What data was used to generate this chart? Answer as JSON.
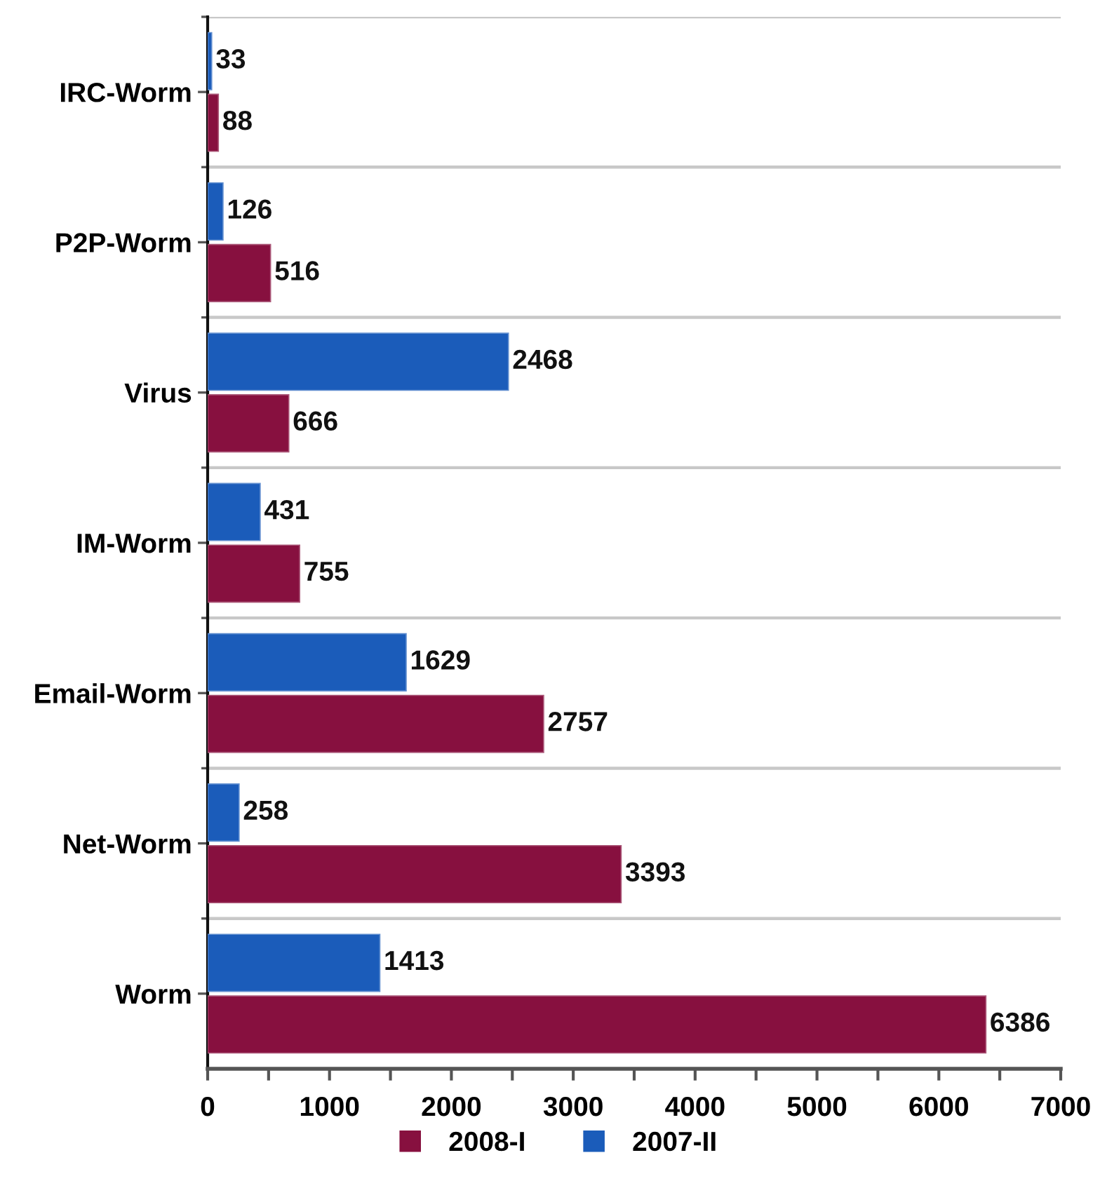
{
  "chart_data": {
    "type": "bar",
    "orientation": "horizontal",
    "categories": [
      "IRC-Worm",
      "P2P-Worm",
      "Virus",
      "IM-Worm",
      "Email-Worm",
      "Net-Worm",
      "Worm"
    ],
    "series": [
      {
        "name": "2008-I",
        "color": "#87103f",
        "values": [
          88,
          516,
          666,
          755,
          2757,
          3393,
          6386
        ]
      },
      {
        "name": "2007-II",
        "color": "#1b5cba",
        "values": [
          33,
          126,
          2468,
          431,
          1629,
          258,
          1413
        ]
      }
    ],
    "xlim": [
      0,
      7000
    ],
    "xticks": [
      0,
      {
        "value": 500,
        "label": null
      },
      1000,
      {
        "value": 1500,
        "label": null
      },
      2000,
      {
        "value": 2500,
        "label": null
      },
      3000,
      {
        "value": 3500,
        "label": null
      },
      4000,
      {
        "value": 4500,
        "label": null
      },
      5000,
      {
        "value": 5500,
        "label": null
      },
      6000,
      {
        "value": 6500,
        "label": null
      },
      7000
    ],
    "grid": "y",
    "legend": "bottom",
    "data_labels": true
  }
}
